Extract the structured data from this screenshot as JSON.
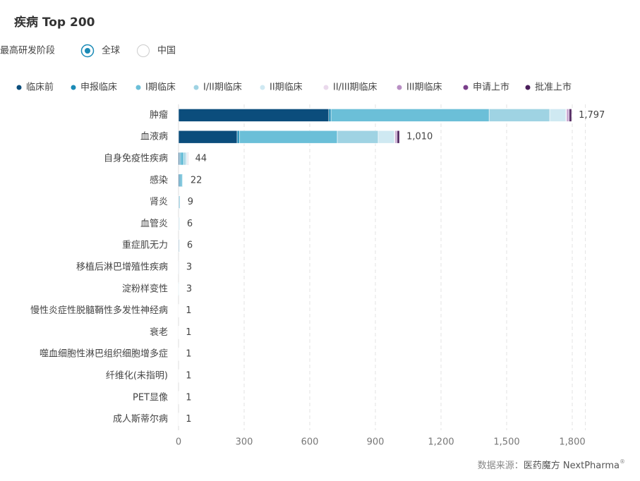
{
  "header": {
    "title": "疾病 Top 200",
    "filter_label": "最高研发阶段",
    "options": [
      "全球",
      "中国"
    ],
    "selected": 0
  },
  "chart_data": {
    "type": "stacked-bar-horizontal",
    "categories": [
      "肿瘤",
      "血液病",
      "自身免疫性疾病",
      "感染",
      "肾炎",
      "血管炎",
      "重症肌无力",
      "移植后淋巴增殖性疾病",
      "淀粉样变性",
      "慢性炎症性脱髓鞘性多发性神经病",
      "衰老",
      "噬血细胞性淋巴组织细胞增多症",
      "纤维化(未指明)",
      "PET显像",
      "成人斯蒂尔病"
    ],
    "series": [
      {
        "name": "临床前",
        "color": "#0b4d7c",
        "values": [
          687,
          268,
          5,
          4,
          3,
          2,
          3,
          2,
          1,
          1,
          1,
          1,
          1,
          1,
          1
        ]
      },
      {
        "name": "申报临床",
        "color": "#1a8ab6",
        "values": [
          10,
          10,
          4,
          6,
          0,
          0,
          0,
          0,
          0,
          0,
          0,
          0,
          0,
          0,
          0
        ]
      },
      {
        "name": "I期临床",
        "color": "#6bbfd8",
        "values": [
          723,
          448,
          15,
          8,
          4,
          3,
          2,
          1,
          2,
          0,
          0,
          0,
          0,
          0,
          0
        ]
      },
      {
        "name": "I/II期临床",
        "color": "#9fd3e3",
        "values": [
          277,
          187,
          10,
          2,
          2,
          0,
          1,
          0,
          0,
          0,
          0,
          0,
          0,
          0,
          0
        ]
      },
      {
        "name": "II期临床",
        "color": "#cfe9f2",
        "values": [
          74,
          74,
          6,
          2,
          0,
          1,
          0,
          0,
          0,
          0,
          0,
          0,
          0,
          0,
          0
        ]
      },
      {
        "name": "II/III期临床",
        "color": "#ead9ec",
        "values": [
          4,
          3,
          0,
          0,
          0,
          0,
          0,
          0,
          0,
          0,
          0,
          0,
          0,
          0,
          0
        ]
      },
      {
        "name": "III期临床",
        "color": "#b98fc4",
        "values": [
          8,
          6,
          2,
          0,
          0,
          0,
          0,
          0,
          0,
          0,
          0,
          0,
          0,
          0,
          0
        ]
      },
      {
        "name": "申请上市",
        "color": "#7a3f8a",
        "values": [
          4,
          4,
          0,
          0,
          0,
          0,
          0,
          0,
          0,
          0,
          0,
          0,
          0,
          0,
          0
        ]
      },
      {
        "name": "批准上市",
        "color": "#4a1e5a",
        "values": [
          10,
          10,
          2,
          0,
          0,
          0,
          0,
          0,
          0,
          0,
          0,
          0,
          0,
          0,
          0
        ]
      }
    ],
    "totals": [
      1797,
      1010,
      44,
      22,
      9,
      6,
      6,
      3,
      3,
      1,
      1,
      1,
      1,
      1,
      1
    ],
    "total_labels": [
      "1,797",
      "1,010",
      "44",
      "22",
      "9",
      "6",
      "6",
      "3",
      "3",
      "1",
      "1",
      "1",
      "1",
      "1",
      "1"
    ],
    "xlim": [
      0,
      1860
    ],
    "xticks": [
      0,
      300,
      600,
      900,
      {
        "value": 1200,
        "label": "1,200"
      },
      {
        "value": 1500,
        "label": "1,500"
      },
      {
        "value": 1800,
        "label": "1,800"
      }
    ],
    "grid": true
  },
  "footer": {
    "source": "数据来源：",
    "brand": "医药魔方 NextPharma",
    "mark": "®"
  }
}
